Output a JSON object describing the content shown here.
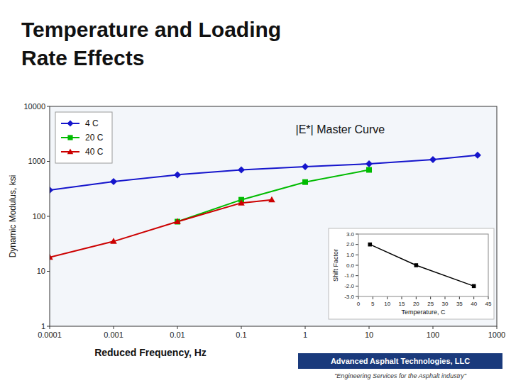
{
  "chart_data": [
    {
      "type": "line",
      "title": "Temperature and Loading",
      "subtitle": "Rate Effects",
      "xlabel": "Reduced Frequency, Hz",
      "ylabel": "Dynamic Modulus, ksi",
      "log": true,
      "xlim": [
        0.0001,
        1000
      ],
      "ylim": [
        1,
        10000
      ],
      "xticks": [
        0.0001,
        0.001,
        0.01,
        0.1,
        1,
        10,
        100,
        1000
      ],
      "yticks": [
        1,
        10,
        100,
        1000,
        10000
      ],
      "grid": false,
      "legend": "upper left",
      "series": [
        {
          "name": "4 C",
          "color": "#1515cc",
          "marker": "diamond",
          "x": [
            0.0001,
            0.001,
            0.01,
            0.1,
            1,
            10,
            100,
            500
          ],
          "values": [
            300,
            430,
            570,
            700,
            800,
            900,
            1080,
            1300
          ]
        },
        {
          "name": "20 C",
          "color": "#00bb00",
          "marker": "square",
          "x": [
            0.01,
            0.1,
            1,
            10
          ],
          "values": [
            80,
            200,
            420,
            700
          ]
        },
        {
          "name": "40 C",
          "color": "#cc0000",
          "marker": "triangle",
          "x": [
            0.0001,
            0.001,
            0.01,
            0.1,
            0.3
          ],
          "values": [
            18,
            35,
            80,
            175,
            200
          ]
        }
      ],
      "annotations": [
        "|E*| Master Curve",
        "Advanced Asphalt Technologies, LLC",
        "\"Engineering Services for the Asphalt industry\""
      ]
    },
    {
      "type": "line",
      "xlabel": "Temperature, C",
      "ylabel": "Shift Factor",
      "xlim": [
        0,
        45
      ],
      "ylim": [
        -3.0,
        3.0
      ],
      "xticks": [
        0,
        5,
        10,
        15,
        20,
        25,
        30,
        35,
        40,
        45
      ],
      "yticks": [
        {
          "value": 3.0,
          "label": "3.0"
        },
        {
          "value": 2.0,
          "label": "2.0"
        },
        {
          "value": 1.0,
          "label": "1.0"
        },
        {
          "value": 0.0,
          "label": "0.0"
        },
        {
          "value": -1.0,
          "label": "-1.0"
        },
        {
          "value": -2.0,
          "label": "-2.0"
        },
        {
          "value": -3.0,
          "label": "-3.0"
        }
      ],
      "grid": false,
      "series": [
        {
          "color": "#000000",
          "marker": "square",
          "x": [
            4,
            20,
            40
          ],
          "values": [
            2.0,
            0.0,
            -2.0
          ]
        }
      ]
    }
  ]
}
